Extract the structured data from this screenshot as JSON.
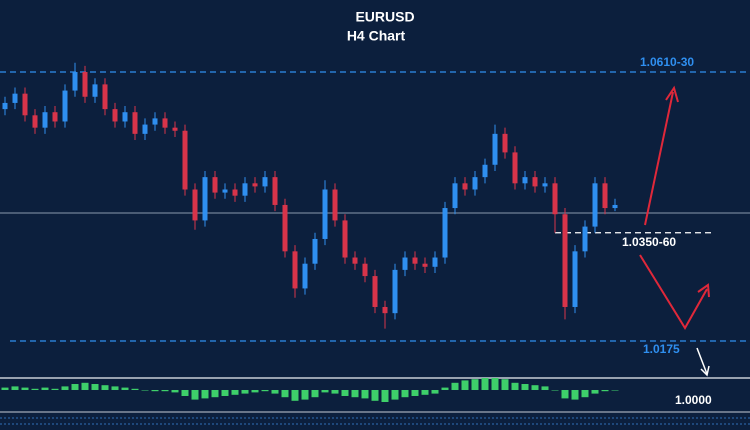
{
  "chart_data": {
    "type": "candlestick",
    "title": "EURUSD",
    "subtitle": "H4 Chart",
    "ylim": [
      1.012,
      1.072
    ],
    "up_color": "#2f8ff0",
    "down_color": "#d8344a",
    "open": [
      1.055,
      1.056,
      1.0575,
      1.054,
      1.052,
      1.0545,
      1.053,
      1.058,
      1.061,
      1.057,
      1.059,
      1.055,
      1.053,
      1.0545,
      1.051,
      1.0525,
      1.0535,
      1.052,
      1.0515,
      1.042,
      1.037,
      1.044,
      1.0415,
      1.042,
      1.041,
      1.043,
      1.0425,
      1.044,
      1.0395,
      1.032,
      1.026,
      1.03,
      1.034,
      1.042,
      1.037,
      1.031,
      1.03,
      1.028,
      1.023,
      1.022,
      1.029,
      1.031,
      1.03,
      1.0295,
      1.031,
      1.039,
      1.043,
      1.042,
      1.044,
      1.046,
      1.051,
      1.048,
      1.043,
      1.044,
      1.0425,
      1.043,
      1.038,
      1.023,
      1.032,
      1.036,
      1.043,
      1.039
    ],
    "high": [
      1.057,
      1.0585,
      1.0585,
      1.055,
      1.0555,
      1.0555,
      1.059,
      1.0625,
      1.062,
      1.06,
      1.06,
      1.056,
      1.0555,
      1.0555,
      1.0535,
      1.0545,
      1.0545,
      1.053,
      1.0525,
      1.043,
      1.045,
      1.045,
      1.043,
      1.043,
      1.044,
      1.044,
      1.045,
      1.045,
      1.0405,
      1.033,
      1.031,
      1.035,
      1.0435,
      1.043,
      1.038,
      1.032,
      1.031,
      1.029,
      1.024,
      1.03,
      1.032,
      1.032,
      1.031,
      1.032,
      1.04,
      1.044,
      1.044,
      1.045,
      1.047,
      1.0525,
      1.052,
      1.049,
      1.045,
      1.045,
      1.044,
      1.044,
      1.039,
      1.033,
      1.037,
      1.044,
      1.044,
      1.0405
    ],
    "low": [
      1.054,
      1.055,
      1.053,
      1.051,
      1.051,
      1.052,
      1.052,
      1.057,
      1.056,
      1.056,
      1.054,
      1.052,
      1.052,
      1.05,
      1.05,
      1.0515,
      1.051,
      1.0505,
      1.041,
      1.0355,
      1.036,
      1.0405,
      1.0405,
      1.04,
      1.04,
      1.0415,
      1.0415,
      1.0385,
      1.031,
      1.0245,
      1.025,
      1.029,
      1.033,
      1.036,
      1.03,
      1.029,
      1.027,
      1.022,
      1.0195,
      1.021,
      1.028,
      1.029,
      1.0285,
      1.0285,
      1.03,
      1.038,
      1.041,
      1.041,
      1.043,
      1.045,
      1.047,
      1.042,
      1.042,
      1.0415,
      1.0415,
      1.035,
      1.021,
      1.022,
      1.031,
      1.035,
      1.038,
      1.0385
    ],
    "close": [
      1.056,
      1.0575,
      1.054,
      1.052,
      1.0545,
      1.053,
      1.058,
      1.061,
      1.057,
      1.059,
      1.055,
      1.053,
      1.0545,
      1.051,
      1.0525,
      1.0535,
      1.052,
      1.0515,
      1.042,
      1.037,
      1.044,
      1.0415,
      1.042,
      1.041,
      1.043,
      1.0425,
      1.044,
      1.0395,
      1.032,
      1.026,
      1.03,
      1.034,
      1.042,
      1.037,
      1.031,
      1.03,
      1.028,
      1.023,
      1.022,
      1.029,
      1.031,
      1.03,
      1.0295,
      1.031,
      1.039,
      1.043,
      1.042,
      1.044,
      1.046,
      1.051,
      1.048,
      1.043,
      1.044,
      1.0425,
      1.043,
      1.038,
      1.023,
      1.032,
      1.036,
      1.043,
      1.039,
      1.0395
    ],
    "levels": [
      {
        "value": 1.061,
        "label": "1.0610-30",
        "color": "#2f8ff0"
      },
      {
        "value": 1.035,
        "label": "1.0350-60",
        "color": "#ffffff"
      },
      {
        "value": 1.0175,
        "label": "1.0175",
        "color": "#2f8ff0"
      }
    ],
    "target_label": "1.0000",
    "indicator": {
      "color": "#3ecf6a",
      "ylim": [
        -1,
        1
      ],
      "values": [
        0.2,
        0.3,
        0.2,
        0.1,
        0.2,
        0.1,
        0.3,
        0.5,
        0.6,
        0.5,
        0.4,
        0.3,
        0.2,
        0.1,
        0,
        -0.1,
        -0.1,
        -0.2,
        -0.5,
        -0.8,
        -0.7,
        -0.6,
        -0.5,
        -0.4,
        -0.3,
        -0.2,
        -0.1,
        -0.3,
        -0.6,
        -0.9,
        -0.8,
        -0.6,
        -0.2,
        -0.3,
        -0.5,
        -0.6,
        -0.7,
        -0.9,
        -1,
        -0.8,
        -0.6,
        -0.5,
        -0.4,
        -0.3,
        0.2,
        0.6,
        0.8,
        0.9,
        1,
        1,
        0.9,
        0.6,
        0.5,
        0.4,
        0.3,
        0,
        -0.7,
        -0.8,
        -0.6,
        -0.3,
        -0.1,
        0
      ]
    }
  }
}
